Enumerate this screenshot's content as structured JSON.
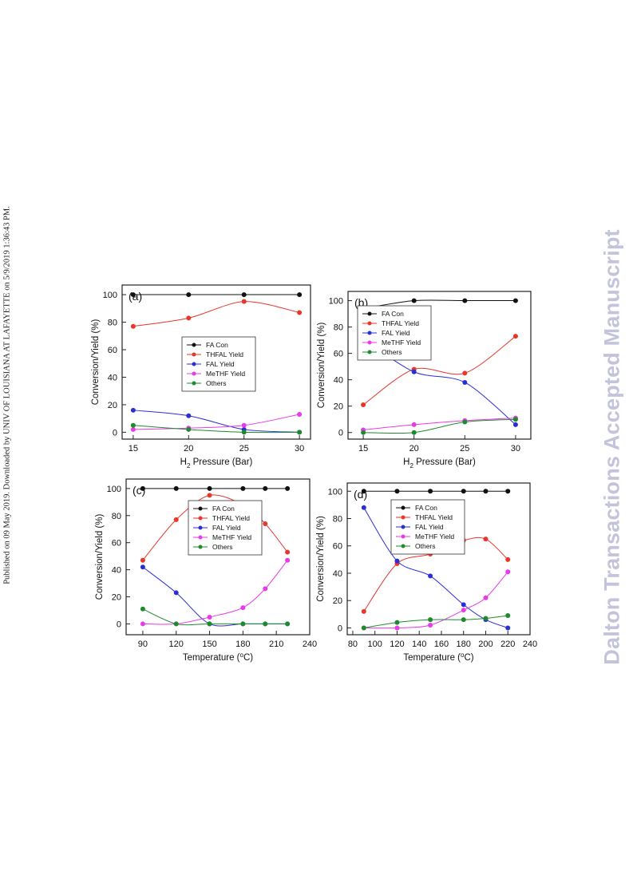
{
  "side_note": "Published on 09 May 2019. Downloaded by UNIV OF LOUISIANA AT LAFAYETTE on 5/9/2019 1:36:43 PM.",
  "watermark": "Dalton Transactions Accepted Manuscript",
  "series_colors": {
    "FA Con": "#111111",
    "THFAL Yield": "#e8362b",
    "FAL Yield": "#2a2fd4",
    "MeTHF Yield": "#e83ae8",
    "Others": "#1f8a2c"
  },
  "chart_data": [
    {
      "type": "line",
      "panel_label": "(a)",
      "x": [
        15,
        20,
        25,
        30
      ],
      "xlim": [
        14,
        31
      ],
      "xticks": [
        15,
        20,
        25,
        30
      ],
      "xtick_labels": [
        "15",
        "20",
        "25",
        "30"
      ],
      "ylim": [
        -5,
        107
      ],
      "yticks": [
        0,
        20,
        40,
        60,
        80,
        100
      ],
      "ylabel": "Conversion/Yield (%)",
      "xlabel_main": "H",
      "xlabel_sub": "2",
      "xlabel_rest": " Pressure (Bar)",
      "legend": [
        "FA Con",
        "THFAL Yield",
        "FAL Yield",
        "MeTHF Yield",
        "Others"
      ],
      "series": [
        {
          "name": "FA Con",
          "values": [
            100,
            100,
            100,
            100
          ]
        },
        {
          "name": "THFAL Yield",
          "values": [
            77,
            83,
            95,
            87
          ]
        },
        {
          "name": "FAL Yield",
          "values": [
            16,
            12,
            2,
            0
          ]
        },
        {
          "name": "MeTHF Yield",
          "values": [
            2,
            3,
            5,
            13
          ]
        },
        {
          "name": "Others",
          "values": [
            5,
            2,
            0,
            0
          ]
        }
      ]
    },
    {
      "type": "line",
      "panel_label": "(b)",
      "x": [
        15,
        20,
        25,
        30
      ],
      "xlim": [
        13.5,
        31.5
      ],
      "xticks": [
        15,
        20,
        25,
        30
      ],
      "xtick_labels": [
        "15",
        "20",
        "25",
        "30"
      ],
      "ylim": [
        -5,
        107
      ],
      "yticks": [
        0,
        20,
        40,
        60,
        80,
        100
      ],
      "ylabel": "Conversion/Yield (%)",
      "xlabel_main": "H",
      "xlabel_sub": "2",
      "xlabel_rest": " Pressure (Bar)",
      "legend": [
        "FA Con",
        "THFAL Yield",
        "FAL Yield",
        "MeTHF Yield",
        "Others"
      ],
      "series": [
        {
          "name": "FA Con",
          "values": [
            94,
            100,
            100,
            100
          ]
        },
        {
          "name": "THFAL Yield",
          "values": [
            21,
            48,
            45,
            73
          ]
        },
        {
          "name": "FAL Yield",
          "values": [
            71,
            46,
            38,
            6
          ]
        },
        {
          "name": "MeTHF Yield",
          "values": [
            2,
            6,
            9,
            11
          ]
        },
        {
          "name": "Others",
          "values": [
            0,
            0,
            8,
            10
          ]
        }
      ]
    },
    {
      "type": "line",
      "panel_label": "(c)",
      "x": [
        90,
        120,
        150,
        180,
        200,
        220
      ],
      "xlim": [
        75,
        240
      ],
      "xticks": [
        90,
        120,
        150,
        180,
        210,
        240
      ],
      "xtick_labels": [
        "90",
        "120",
        "150",
        "180",
        "210",
        "240"
      ],
      "ylim": [
        -8,
        107
      ],
      "yticks": [
        0,
        20,
        40,
        60,
        80,
        100
      ],
      "ylabel": "Conversion/Yield (%)",
      "xlabel_main": "Temperature (",
      "xlabel_sup": "o",
      "xlabel_rest": "C)",
      "legend": [
        "FA Con",
        "THFAL Yield",
        "FAL Yield",
        "MeTHF Yield",
        "Others"
      ],
      "series": [
        {
          "name": "FA Con",
          "values": [
            100,
            100,
            100,
            100,
            100,
            100
          ]
        },
        {
          "name": "THFAL Yield",
          "values": [
            47,
            77,
            95,
            88,
            74,
            53
          ]
        },
        {
          "name": "FAL Yield",
          "values": [
            42,
            23,
            0,
            0,
            0,
            0
          ]
        },
        {
          "name": "MeTHF Yield",
          "values": [
            0,
            0,
            5,
            12,
            26,
            47
          ]
        },
        {
          "name": "Others",
          "values": [
            11,
            0,
            0,
            0,
            0,
            0
          ]
        }
      ]
    },
    {
      "type": "line",
      "panel_label": "(d)",
      "x": [
        90,
        120,
        150,
        180,
        200,
        220
      ],
      "xlim": [
        75,
        240
      ],
      "xticks": [
        80,
        100,
        120,
        140,
        160,
        180,
        200,
        220,
        240
      ],
      "xtick_labels": [
        "80",
        "100",
        "120",
        "140",
        "160",
        "180",
        "200",
        "220",
        "240"
      ],
      "ylim": [
        -5,
        106
      ],
      "yticks": [
        0,
        20,
        40,
        60,
        80,
        100
      ],
      "ylabel": "Conversion/Yield (%)",
      "xlabel_main": "Temperature (",
      "xlabel_sup": "o",
      "xlabel_rest": "C)",
      "legend": [
        "FA Con",
        "THFAL Yield",
        "FAL Yield",
        "MeTHF Yield",
        "Others"
      ],
      "series": [
        {
          "name": "FA Con",
          "values": [
            100,
            100,
            100,
            100,
            100,
            100
          ]
        },
        {
          "name": "THFAL Yield",
          "values": [
            12,
            47,
            54,
            64,
            65,
            50
          ]
        },
        {
          "name": "FAL Yield",
          "values": [
            88,
            49,
            38,
            17,
            6,
            0
          ]
        },
        {
          "name": "MeTHF Yield",
          "values": [
            0,
            0,
            2,
            13,
            22,
            41
          ]
        },
        {
          "name": "Others",
          "values": [
            0,
            4,
            6,
            6,
            7,
            9
          ]
        }
      ]
    }
  ]
}
